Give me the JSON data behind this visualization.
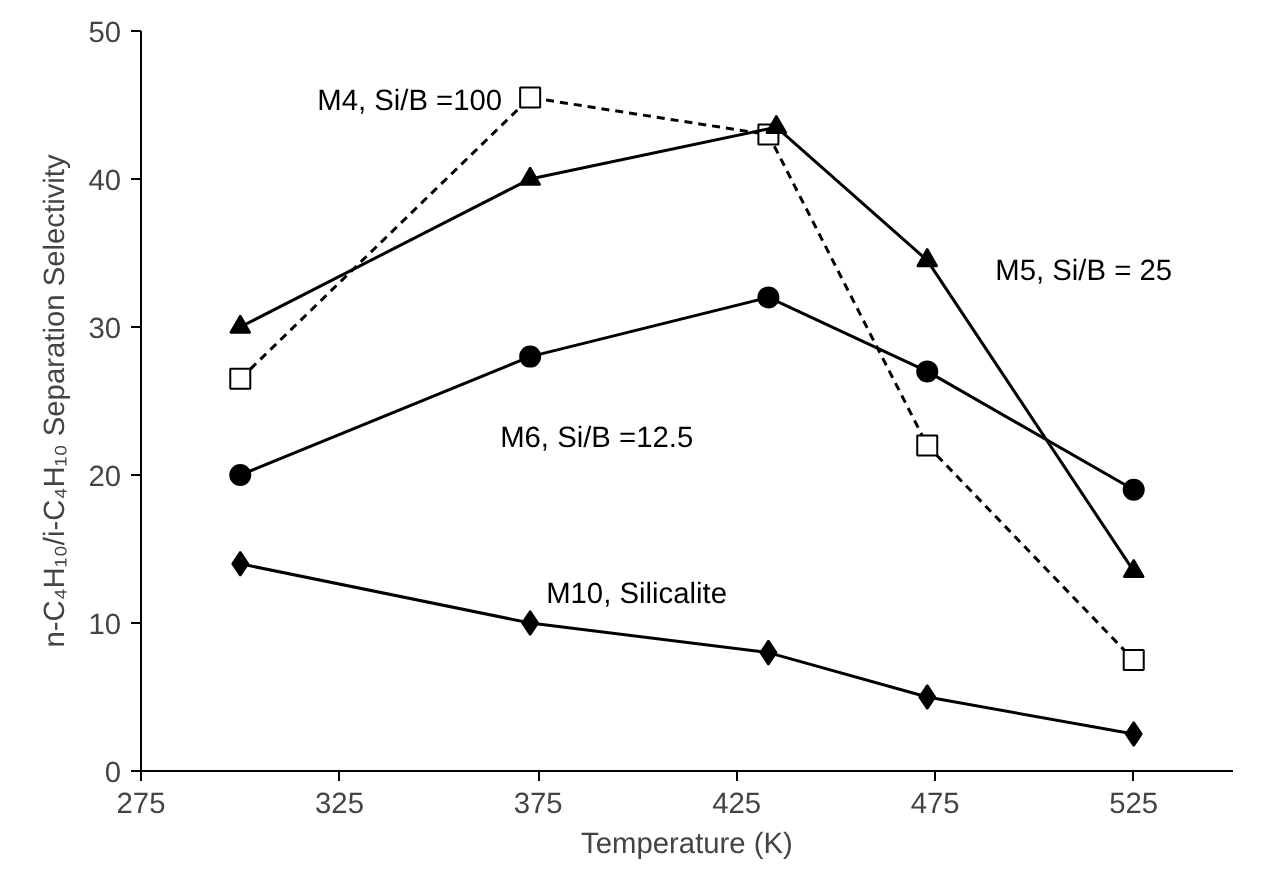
{
  "chart_data": {
    "type": "line",
    "xlabel": "Temperature (K)",
    "ylabel": "n-C₄H₁₀/i-C₄H₁₀ Separation Selectivity",
    "xlim": [
      275,
      550
    ],
    "xticks": [
      275,
      325,
      375,
      425,
      475,
      525
    ],
    "ylim": [
      0,
      50
    ],
    "yticks": [
      0,
      10,
      20,
      30,
      40,
      50
    ],
    "grid": false,
    "series": [
      {
        "name": "M4, Si/B =100",
        "color": "#000000",
        "marker": "square",
        "line_style": "dashed",
        "x": [
          300,
          373,
          433,
          473,
          525
        ],
        "values": [
          26.5,
          45.5,
          43,
          22,
          7.5
        ]
      },
      {
        "name": "M5, Si/B = 25",
        "color": "#000000",
        "marker": "triangle",
        "line_style": "solid",
        "x": [
          300,
          373,
          435,
          473,
          525
        ],
        "values": [
          30,
          40,
          43.5,
          34.5,
          13.5
        ]
      },
      {
        "name": "M6, Si/B =12.5",
        "color": "#000000",
        "marker": "circle",
        "line_style": "solid",
        "x": [
          300,
          373,
          433,
          473,
          525
        ],
        "values": [
          20,
          28,
          32,
          27,
          19
        ]
      },
      {
        "name": "M10, Silicalite",
        "color": "#000000",
        "marker": "diamond",
        "line_style": "solid",
        "x": [
          300,
          373,
          433,
          473,
          525
        ],
        "values": [
          14,
          10,
          8,
          5,
          2.5
        ]
      }
    ]
  }
}
